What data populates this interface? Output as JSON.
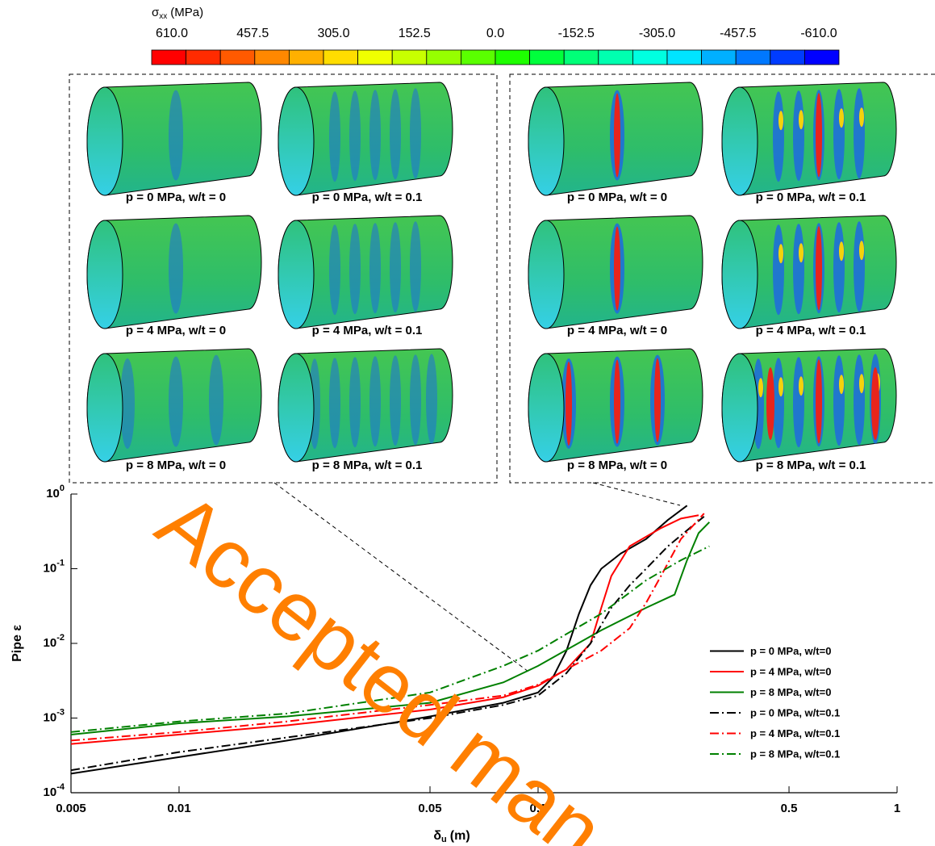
{
  "colorbar": {
    "label": {
      "symbol": "σ",
      "subscript": "xx",
      "unit": "(MPa)"
    },
    "lim": [
      610,
      -610
    ],
    "ticks": [
      {
        "value": 610,
        "label": "610.0"
      },
      457.5,
      {
        "value": 305,
        "label": "305.0"
      },
      152.5,
      {
        "value": 0,
        "label": "0.0"
      },
      -152.5,
      {
        "value": -305,
        "label": "-305.0"
      },
      -457.5,
      {
        "value": -610,
        "label": "-610.0"
      }
    ],
    "colors": [
      "#ff0000",
      "#ff2b00",
      "#ff5a00",
      "#ff8800",
      "#ffb000",
      "#ffdd00",
      "#f0ff00",
      "#c8ff00",
      "#96ff00",
      "#5aff00",
      "#1eff00",
      "#00ff3c",
      "#00ff78",
      "#00ffb0",
      "#00ffe0",
      "#00e4ff",
      "#00b0ff",
      "#0078ff",
      "#003cff",
      "#0000ff"
    ]
  },
  "panels": [
    [
      "p = 0 MPa, w/t = 0",
      "p = 0 MPa, w/t = 0.1",
      "p = 4 MPa, w/t = 0",
      "p = 4 MPa, w/t = 0.1",
      "p = 8 MPa, w/t = 0",
      "p = 8 MPa, w/t = 0.1"
    ],
    [
      "p = 0 MPa, w/t = 0",
      "p = 0 MPa, w/t = 0.1",
      "p = 4 MPa, w/t = 0",
      "p = 4 MPa, w/t = 0.1",
      "p = 8 MPa, w/t = 0",
      "p = 8 MPa, w/t = 0.1"
    ]
  ],
  "chart_data": {
    "type": "line",
    "y_label": "Pipe ε",
    "x_label": {
      "symbol": "δ",
      "subscript": "u",
      "unit": "(m)"
    },
    "log_x": true,
    "log_y": true,
    "xlim": [
      0.005,
      1
    ],
    "ylim": [
      0.0001,
      1
    ],
    "xticks": [
      0.005,
      0.01,
      0.05,
      0.1,
      0.5,
      1
    ],
    "yticks": [
      {
        "value": 0.0001,
        "label": "10",
        "exponent": "-4"
      },
      {
        "value": 0.001,
        "label": "10",
        "exponent": "-3"
      },
      {
        "value": 0.01,
        "label": "10",
        "exponent": "-2"
      },
      {
        "value": 0.1,
        "label": "10",
        "exponent": "-1"
      },
      {
        "value": 1,
        "label": "10",
        "exponent": "0"
      }
    ],
    "legend_loc": "lower right",
    "series": [
      {
        "name": "p = 0 MPa, w/t=0",
        "color": "#000000",
        "dash": "solid",
        "x": [
          0.005,
          0.01,
          0.02,
          0.05,
          0.08,
          0.1,
          0.11,
          0.12,
          0.13,
          0.14,
          0.15,
          0.17,
          0.2,
          0.23,
          0.26
        ],
        "values": [
          0.00018,
          0.0003,
          0.0005,
          0.00105,
          0.0016,
          0.0022,
          0.0035,
          0.008,
          0.025,
          0.06,
          0.1,
          0.16,
          0.25,
          0.45,
          0.7
        ]
      },
      {
        "name": "p = 4 MPa, w/t=0",
        "color": "#ff0000",
        "dash": "solid",
        "x": [
          0.005,
          0.01,
          0.02,
          0.05,
          0.08,
          0.1,
          0.12,
          0.14,
          0.15,
          0.16,
          0.18,
          0.22,
          0.25,
          0.28
        ],
        "values": [
          0.00045,
          0.0006,
          0.0008,
          0.0013,
          0.0019,
          0.0027,
          0.0045,
          0.01,
          0.03,
          0.08,
          0.2,
          0.35,
          0.47,
          0.52
        ]
      },
      {
        "name": "p = 8 MPa, w/t=0",
        "color": "#008000",
        "dash": "solid",
        "x": [
          0.005,
          0.01,
          0.02,
          0.05,
          0.08,
          0.1,
          0.15,
          0.2,
          0.24,
          0.26,
          0.28,
          0.3
        ],
        "values": [
          0.0006,
          0.00085,
          0.00105,
          0.0016,
          0.003,
          0.005,
          0.015,
          0.03,
          0.045,
          0.13,
          0.3,
          0.42
        ]
      },
      {
        "name": "p = 0 MPa, w/t=0.1",
        "color": "#000000",
        "dash": "dashdot",
        "x": [
          0.005,
          0.01,
          0.02,
          0.05,
          0.08,
          0.1,
          0.12,
          0.14,
          0.16,
          0.18,
          0.2,
          0.23,
          0.27,
          0.29
        ],
        "values": [
          0.0002,
          0.00035,
          0.00055,
          0.001,
          0.0015,
          0.002,
          0.004,
          0.01,
          0.03,
          0.06,
          0.1,
          0.2,
          0.38,
          0.5
        ]
      },
      {
        "name": "p = 4 MPa, w/t=0.1",
        "color": "#ff0000",
        "dash": "dashdot",
        "x": [
          0.005,
          0.01,
          0.02,
          0.05,
          0.08,
          0.1,
          0.12,
          0.15,
          0.18,
          0.2,
          0.22,
          0.25,
          0.29
        ],
        "values": [
          0.0005,
          0.00065,
          0.0009,
          0.0015,
          0.002,
          0.0028,
          0.0045,
          0.008,
          0.016,
          0.035,
          0.08,
          0.25,
          0.55
        ]
      },
      {
        "name": "p = 8 MPa, w/t=0.1",
        "color": "#008000",
        "dash": "dashdot",
        "x": [
          0.005,
          0.01,
          0.02,
          0.05,
          0.08,
          0.1,
          0.15,
          0.2,
          0.25,
          0.3
        ],
        "values": [
          0.00065,
          0.0009,
          0.00115,
          0.0022,
          0.005,
          0.008,
          0.025,
          0.07,
          0.13,
          0.2
        ]
      }
    ]
  },
  "watermark": "Accepted man"
}
